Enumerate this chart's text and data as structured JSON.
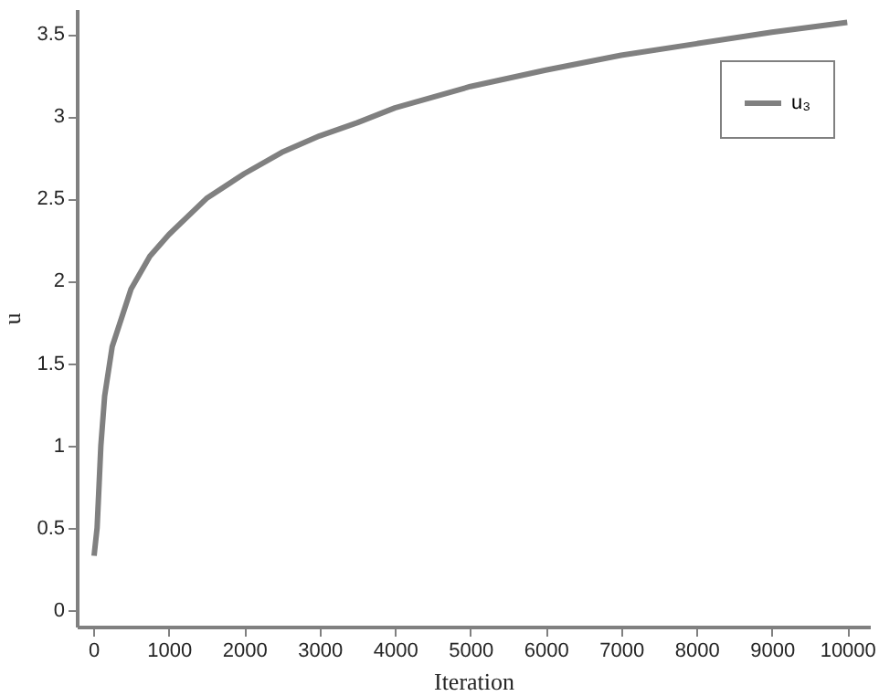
{
  "chart_data": {
    "type": "line",
    "xlabel": "Iteration",
    "ylabel": "u",
    "series": [
      {
        "name": "u₃",
        "color": "#808080",
        "x": [
          10,
          50,
          100,
          150,
          250,
          500,
          750,
          1000,
          1500,
          2000,
          2500,
          3000,
          3500,
          4000,
          5000,
          6000,
          7000,
          8000,
          9000,
          10000
        ],
        "values": [
          0.33,
          0.5,
          1.0,
          1.3,
          1.6,
          1.95,
          2.15,
          2.28,
          2.5,
          2.65,
          2.78,
          2.88,
          2.96,
          3.05,
          3.18,
          3.28,
          3.37,
          3.44,
          3.51,
          3.57
        ]
      }
    ],
    "xlim": [
      -220,
      10300
    ],
    "xticks": [
      0,
      1000,
      2000,
      3000,
      4000,
      5000,
      6000,
      7000,
      8000,
      9000,
      10000
    ],
    "ylim": [
      -0.1,
      3.65
    ],
    "yticks": [
      0,
      0.5,
      1,
      1.5,
      2,
      2.5,
      3,
      3.5
    ],
    "grid": false,
    "legend": "right",
    "marker": "none",
    "line_style": "solid"
  }
}
